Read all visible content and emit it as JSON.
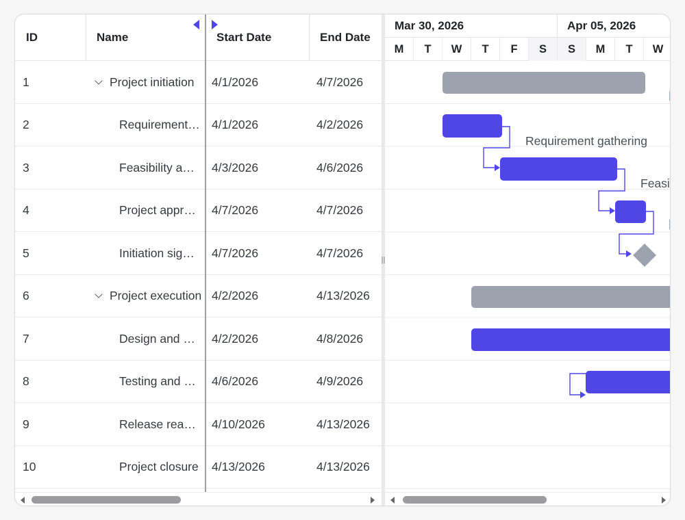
{
  "grid": {
    "columns": {
      "id": "ID",
      "name": "Name",
      "start": "Start Date",
      "end": "End Date"
    },
    "rows": [
      {
        "id": "1",
        "name": "Project initiation",
        "start": "4/1/2026",
        "end": "4/7/2026",
        "parent": true
      },
      {
        "id": "2",
        "name": "Requirement gathering",
        "start": "4/1/2026",
        "end": "4/2/2026",
        "parent": false
      },
      {
        "id": "3",
        "name": "Feasibility analysis",
        "start": "4/3/2026",
        "end": "4/6/2026",
        "parent": false
      },
      {
        "id": "4",
        "name": "Project approval",
        "start": "4/7/2026",
        "end": "4/7/2026",
        "parent": false
      },
      {
        "id": "5",
        "name": "Initiation sign-off",
        "start": "4/7/2026",
        "end": "4/7/2026",
        "parent": false
      },
      {
        "id": "6",
        "name": "Project execution",
        "start": "4/2/2026",
        "end": "4/13/2026",
        "parent": true
      },
      {
        "id": "7",
        "name": "Design and development",
        "start": "4/2/2026",
        "end": "4/8/2026",
        "parent": false
      },
      {
        "id": "8",
        "name": "Testing and QA",
        "start": "4/6/2026",
        "end": "4/9/2026",
        "parent": false
      },
      {
        "id": "9",
        "name": "Release readiness",
        "start": "4/10/2026",
        "end": "4/13/2026",
        "parent": false
      },
      {
        "id": "10",
        "name": "Project closure",
        "start": "4/13/2026",
        "end": "4/13/2026",
        "parent": false
      }
    ]
  },
  "timeline": {
    "weeks": [
      "Mar 30, 2026",
      "Apr 05, 2026"
    ],
    "days": [
      "M",
      "T",
      "W",
      "T",
      "F",
      "S",
      "S",
      "M",
      "T",
      "W"
    ]
  },
  "chart": {
    "labels": {
      "row2": "Requirement gathering",
      "row3": "Feasibility analysis"
    }
  },
  "colors": {
    "accent": "#4f46e5",
    "summary": "#9ca3af",
    "connector": "#4f46e5"
  },
  "icons": {
    "expand": "chevron-down-icon",
    "splitter": "splitter-grip-icon"
  }
}
